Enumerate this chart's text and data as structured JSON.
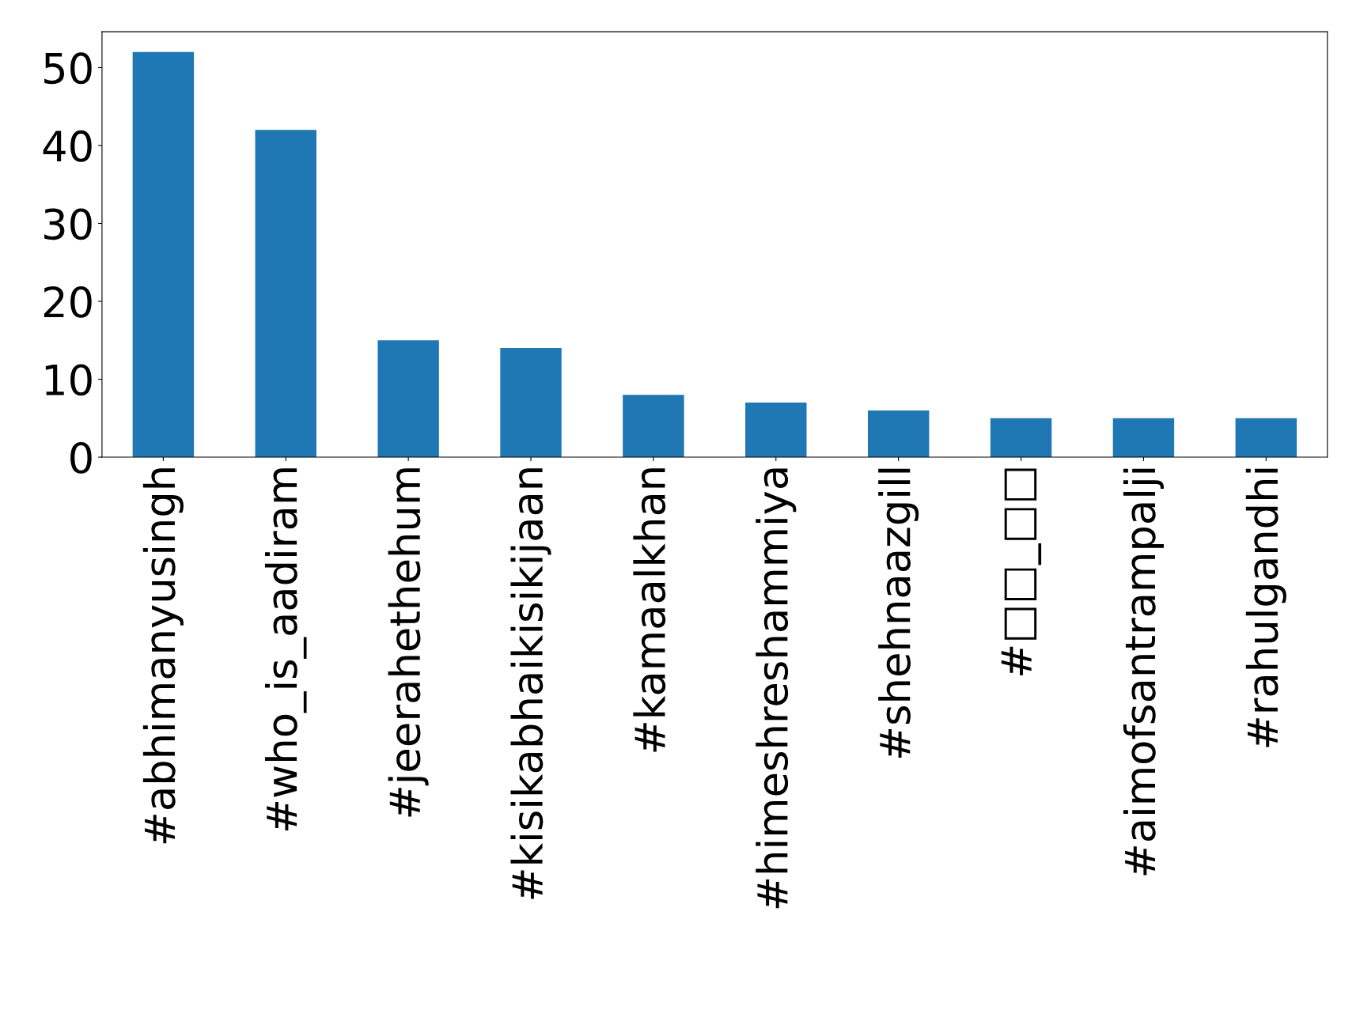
{
  "chart_data": {
    "type": "bar",
    "categories": [
      "#abhimanyusingh",
      "#who_is_aadiram",
      "#jeerahethehum",
      "#kisikabhaikisikijaan",
      "#kamaalkhan",
      "#himeshreshammiya",
      "#shehnaazgill",
      "#□□_□□",
      "#aimofsantrampalji",
      "#rahulgandhi"
    ],
    "values": [
      52,
      42,
      15,
      14,
      8,
      7,
      6,
      5,
      5,
      5
    ],
    "color": "#1f77b4",
    "ylim": [
      0,
      54.6
    ],
    "yticks": [
      0,
      10,
      20,
      30,
      40,
      50
    ],
    "grid": false
  }
}
